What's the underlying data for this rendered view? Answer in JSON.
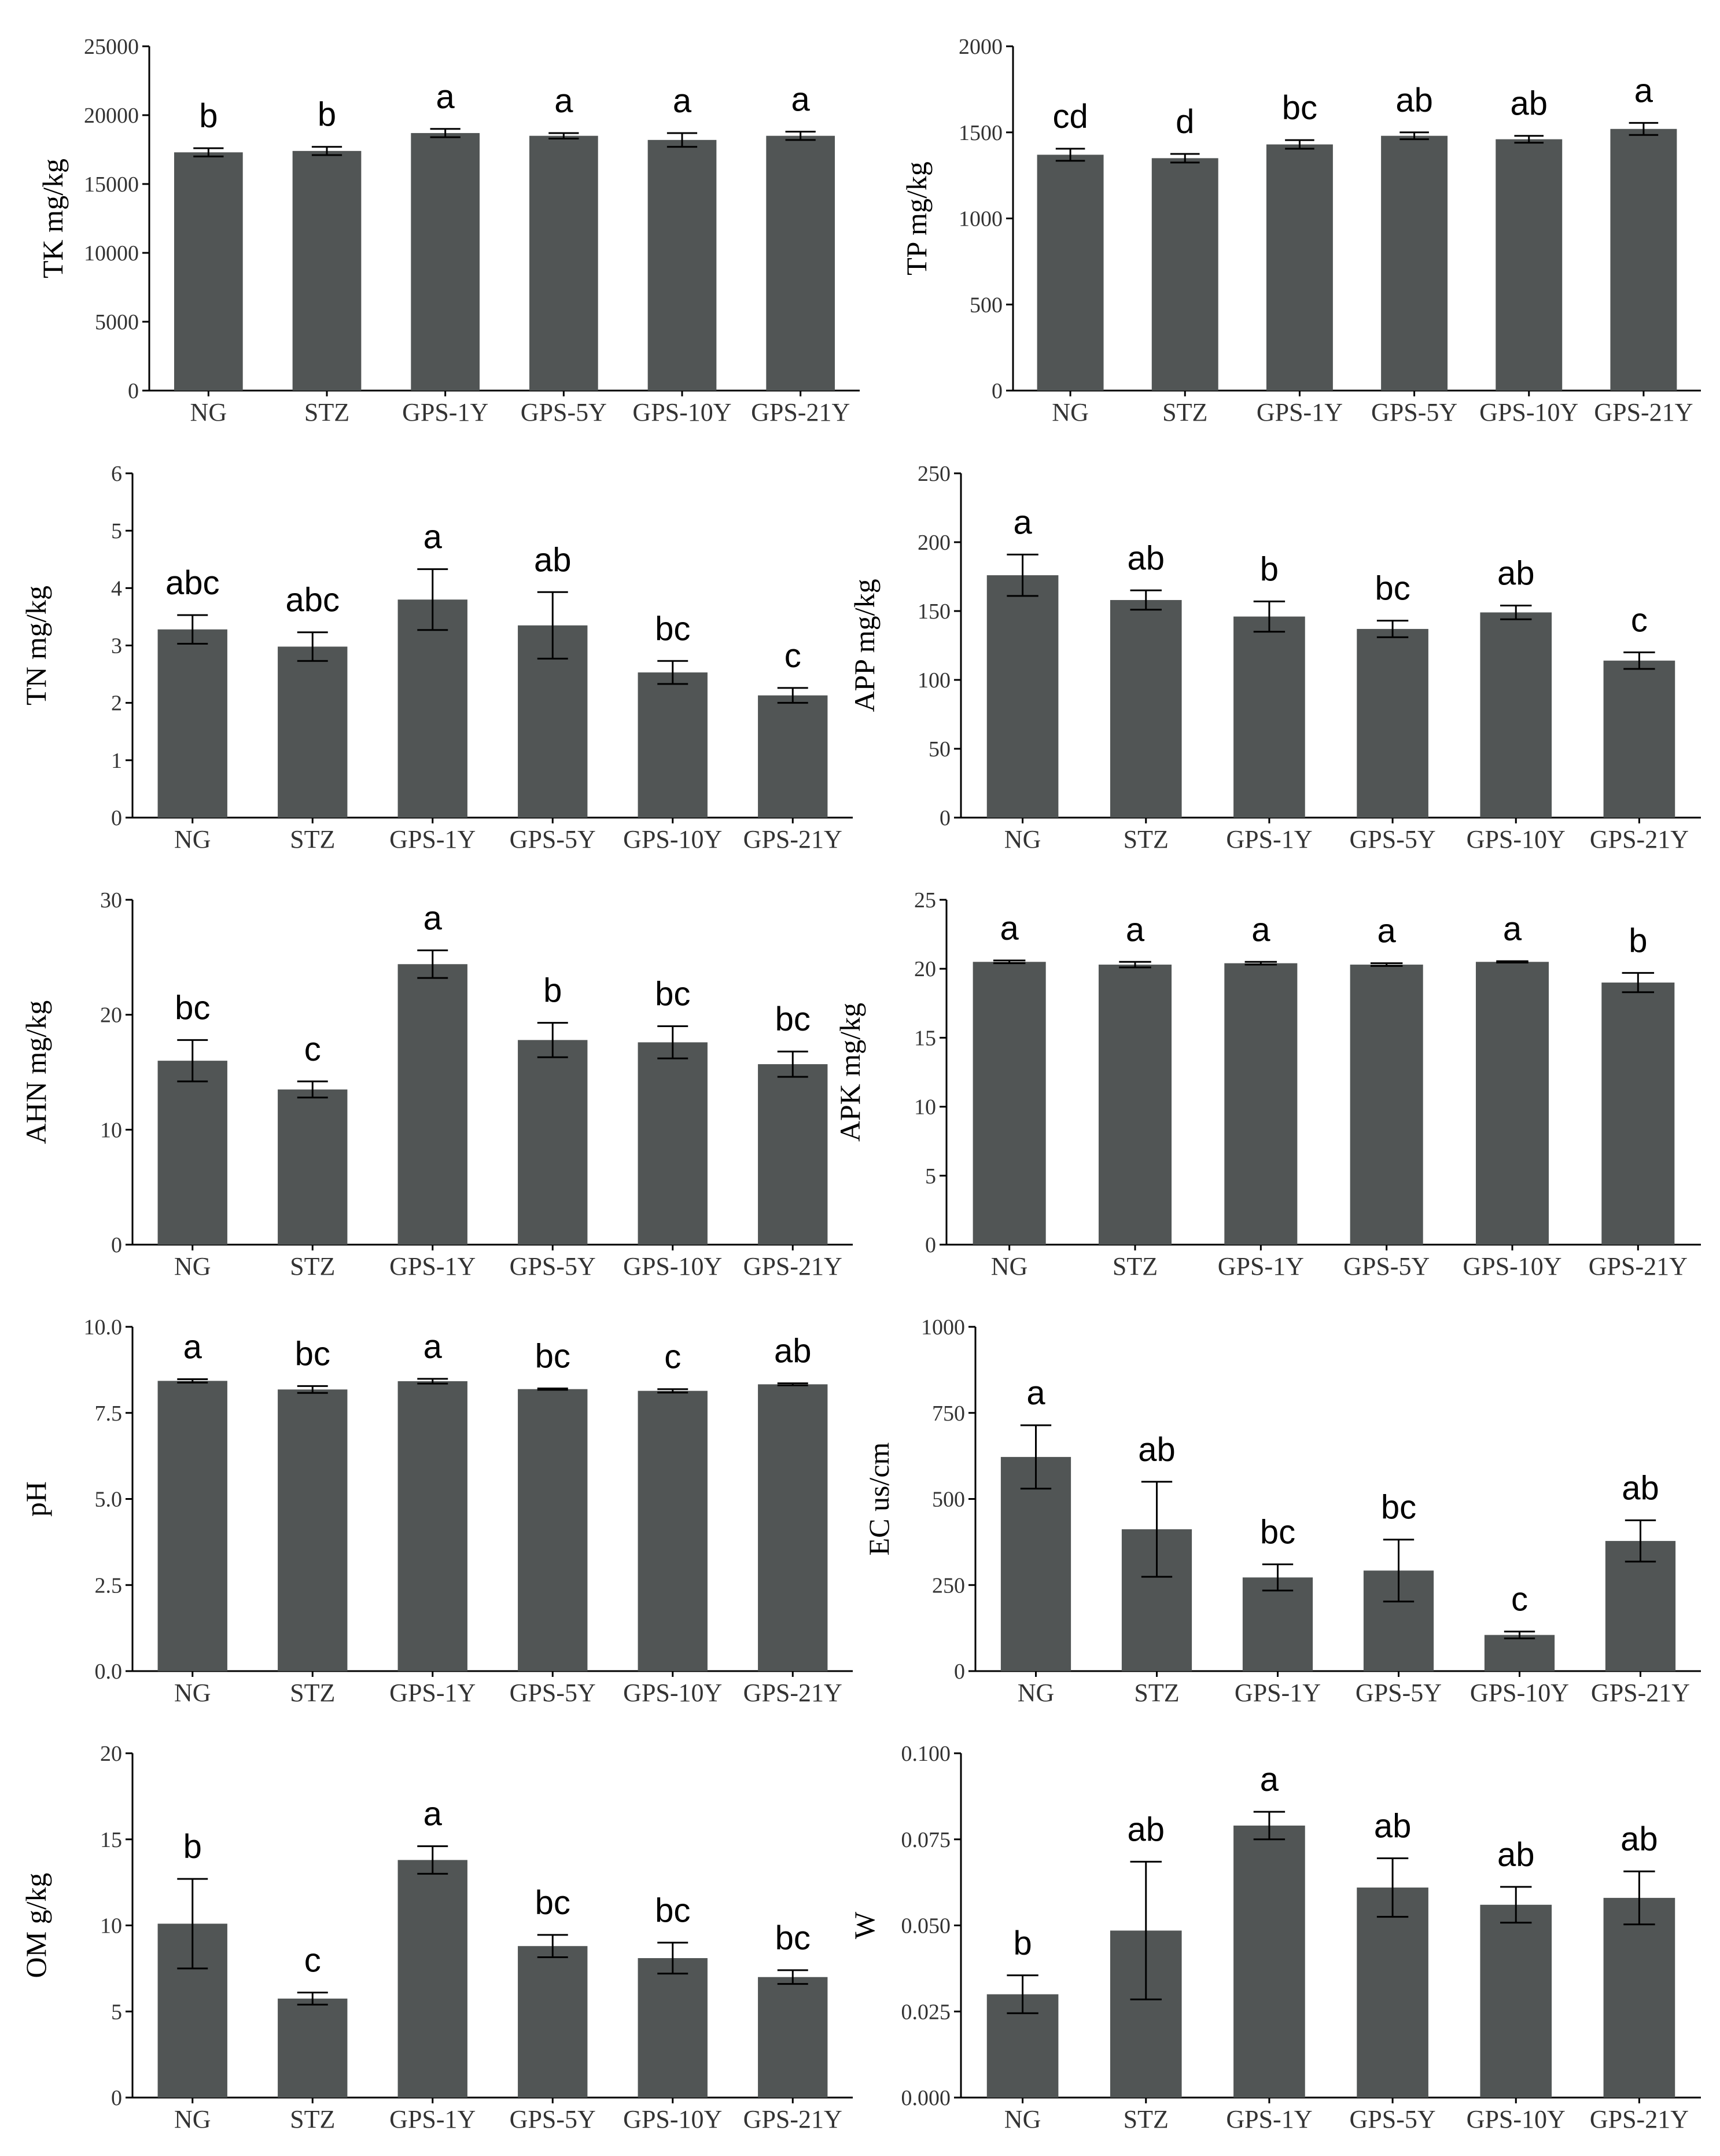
{
  "figure": {
    "description_free": true,
    "bar_color": "#515555",
    "axis_color": "#000000"
  },
  "chart_data": [
    {
      "type": "bar",
      "ylabel": "TK mg/kg",
      "categories": [
        "NG",
        "STZ",
        "GPS-1Y",
        "GPS-5Y",
        "GPS-10Y",
        "GPS-21Y"
      ],
      "values": [
        17300,
        17400,
        18700,
        18500,
        18200,
        18500
      ],
      "errors": [
        300,
        300,
        300,
        200,
        500,
        300
      ],
      "letters": [
        "b",
        "b",
        "a",
        "a",
        "a",
        "a"
      ],
      "yticks": [
        0,
        5000,
        10000,
        15000,
        20000,
        25000
      ],
      "ytick_labels": [
        "0",
        "5000",
        "10000",
        "15000",
        "20000",
        "25000"
      ],
      "ylim": [
        0,
        25000
      ]
    },
    {
      "type": "bar",
      "ylabel": "TP mg/kg",
      "categories": [
        "NG",
        "STZ",
        "GPS-1Y",
        "GPS-5Y",
        "GPS-10Y",
        "GPS-21Y"
      ],
      "values": [
        1370,
        1350,
        1430,
        1480,
        1460,
        1520
      ],
      "errors": [
        35,
        25,
        25,
        20,
        20,
        35
      ],
      "letters": [
        "cd",
        "d",
        "bc",
        "ab",
        "ab",
        "a"
      ],
      "yticks": [
        0,
        500,
        1000,
        1500,
        2000
      ],
      "ytick_labels": [
        "0",
        "500",
        "1000",
        "1500",
        "2000"
      ],
      "ylim": [
        0,
        2000
      ]
    },
    {
      "type": "bar",
      "ylabel": "TN mg/kg",
      "categories": [
        "NG",
        "STZ",
        "GPS-1Y",
        "GPS-5Y",
        "GPS-10Y",
        "GPS-21Y"
      ],
      "values": [
        3.28,
        2.98,
        3.8,
        3.35,
        2.53,
        2.13
      ],
      "errors": [
        0.25,
        0.25,
        0.53,
        0.58,
        0.2,
        0.13
      ],
      "letters": [
        "abc",
        "abc",
        "a",
        "ab",
        "bc",
        "c"
      ],
      "yticks": [
        0,
        1,
        2,
        3,
        4,
        5,
        6
      ],
      "ytick_labels": [
        "0",
        "1",
        "2",
        "3",
        "4",
        "5",
        "6"
      ],
      "ylim": [
        0,
        6
      ]
    },
    {
      "type": "bar",
      "ylabel": "APP mg/kg",
      "categories": [
        "NG",
        "STZ",
        "GPS-1Y",
        "GPS-5Y",
        "GPS-10Y",
        "GPS-21Y"
      ],
      "values": [
        176,
        158,
        146,
        137,
        149,
        114
      ],
      "errors": [
        15,
        7,
        11,
        6,
        5,
        6
      ],
      "letters": [
        "a",
        "ab",
        "b",
        "bc",
        "ab",
        "c"
      ],
      "yticks": [
        0,
        50,
        100,
        150,
        200,
        250
      ],
      "ytick_labels": [
        "0",
        "50",
        "100",
        "150",
        "200",
        "250"
      ],
      "ylim": [
        0,
        250
      ]
    },
    {
      "type": "bar",
      "ylabel": "AHN mg/kg",
      "categories": [
        "NG",
        "STZ",
        "GPS-1Y",
        "GPS-5Y",
        "GPS-10Y",
        "GPS-21Y"
      ],
      "values": [
        16,
        13.5,
        24.4,
        17.8,
        17.6,
        15.7
      ],
      "errors": [
        1.8,
        0.7,
        1.2,
        1.5,
        1.4,
        1.1
      ],
      "letters": [
        "bc",
        "c",
        "a",
        "b",
        "bc",
        "bc"
      ],
      "yticks": [
        0,
        10,
        20,
        30
      ],
      "ytick_labels": [
        "0",
        "10",
        "20",
        "30"
      ],
      "ylim": [
        0,
        30
      ]
    },
    {
      "type": "bar",
      "ylabel": "APK mg/kg",
      "categories": [
        "NG",
        "STZ",
        "GPS-1Y",
        "GPS-5Y",
        "GPS-10Y",
        "GPS-21Y"
      ],
      "values": [
        20.5,
        20.3,
        20.4,
        20.3,
        20.5,
        19
      ],
      "errors": [
        0.1,
        0.2,
        0.1,
        0.1,
        0.05,
        0.7
      ],
      "letters": [
        "a",
        "a",
        "a",
        "a",
        "a",
        "b"
      ],
      "yticks": [
        0,
        5,
        10,
        15,
        20,
        25
      ],
      "ytick_labels": [
        "0",
        "5",
        "10",
        "15",
        "20",
        "25"
      ],
      "ylim": [
        0,
        25
      ]
    },
    {
      "type": "bar",
      "ylabel": "pH",
      "categories": [
        "NG",
        "STZ",
        "GPS-1Y",
        "GPS-5Y",
        "GPS-10Y",
        "GPS-21Y"
      ],
      "values": [
        8.43,
        8.18,
        8.42,
        8.19,
        8.14,
        8.33
      ],
      "errors": [
        0.05,
        0.1,
        0.07,
        0.02,
        0.05,
        0.03
      ],
      "letters": [
        "a",
        "bc",
        "a",
        "bc",
        "c",
        "ab"
      ],
      "yticks": [
        0,
        2.5,
        5,
        7.5,
        10
      ],
      "ytick_labels": [
        "0.0",
        "2.5",
        "5.0",
        "7.5",
        "10.0"
      ],
      "ylim": [
        0,
        10
      ]
    },
    {
      "type": "bar",
      "ylabel": "EC us/cm",
      "categories": [
        "NG",
        "STZ",
        "GPS-1Y",
        "GPS-5Y",
        "GPS-10Y",
        "GPS-21Y"
      ],
      "values": [
        622,
        412,
        272,
        292,
        105,
        378
      ],
      "errors": [
        92,
        138,
        38,
        90,
        10,
        60
      ],
      "letters": [
        "a",
        "ab",
        "bc",
        "bc",
        "c",
        "ab"
      ],
      "yticks": [
        0,
        250,
        500,
        750,
        1000
      ],
      "ytick_labels": [
        "0",
        "250",
        "500",
        "750",
        "1000"
      ],
      "ylim": [
        0,
        1000
      ]
    },
    {
      "type": "bar",
      "ylabel": "OM g/kg",
      "categories": [
        "NG",
        "STZ",
        "GPS-1Y",
        "GPS-5Y",
        "GPS-10Y",
        "GPS-21Y"
      ],
      "values": [
        10.1,
        5.75,
        13.8,
        8.8,
        8.1,
        7
      ],
      "errors": [
        2.6,
        0.35,
        0.8,
        0.65,
        0.9,
        0.4
      ],
      "letters": [
        "b",
        "c",
        "a",
        "bc",
        "bc",
        "bc"
      ],
      "yticks": [
        0,
        5,
        10,
        15,
        20
      ],
      "ytick_labels": [
        "0",
        "5",
        "10",
        "15",
        "20"
      ],
      "ylim": [
        0,
        20
      ]
    },
    {
      "type": "bar",
      "ylabel": "W",
      "categories": [
        "NG",
        "STZ",
        "GPS-1Y",
        "GPS-5Y",
        "GPS-10Y",
        "GPS-21Y"
      ],
      "values": [
        0.03,
        0.0485,
        0.079,
        0.061,
        0.056,
        0.058
      ],
      "errors": [
        0.0055,
        0.02,
        0.004,
        0.0085,
        0.0052,
        0.0077
      ],
      "letters": [
        "b",
        "ab",
        "a",
        "ab",
        "ab",
        "ab"
      ],
      "yticks": [
        0,
        0.025,
        0.05,
        0.075,
        0.1
      ],
      "ytick_labels": [
        "0.000",
        "0.025",
        "0.050",
        "0.075",
        "0.100"
      ],
      "ylim": [
        0,
        0.1
      ]
    }
  ]
}
